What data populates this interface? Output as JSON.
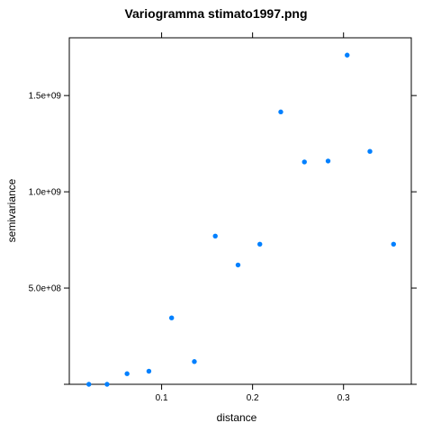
{
  "chart_data": {
    "type": "scatter",
    "title": "Variogramma stimato1997.png",
    "xlabel": "distance",
    "ylabel": "semivariance",
    "xlim": [
      -0.0015,
      0.3745
    ],
    "ylim": [
      0,
      1800000000.0
    ],
    "x_ticks": [
      {
        "value": 0.1,
        "label": "0.1"
      },
      {
        "value": 0.2,
        "label": "0.2"
      },
      {
        "value": 0.3,
        "label": "0.3"
      }
    ],
    "y_ticks": [
      {
        "value": 0,
        "label": ""
      },
      {
        "value": 500000000,
        "label": "5.0e+08"
      },
      {
        "value": 1000000000,
        "label": "1.0e+09"
      },
      {
        "value": 1500000000,
        "label": "1.5e+09"
      }
    ],
    "grid": false,
    "point_color": "#0080ff",
    "x": [
      0.02,
      0.04,
      0.062,
      0.086,
      0.111,
      0.136,
      0.159,
      0.184,
      0.208,
      0.231,
      0.257,
      0.283,
      0.304,
      0.329,
      0.355
    ],
    "y": [
      0,
      0,
      55000000,
      68000000,
      345000000,
      118000000,
      770000000,
      620000000,
      728000000,
      1415000000,
      1155000000,
      1160000000,
      1710000000,
      1210000000,
      728000000
    ]
  }
}
